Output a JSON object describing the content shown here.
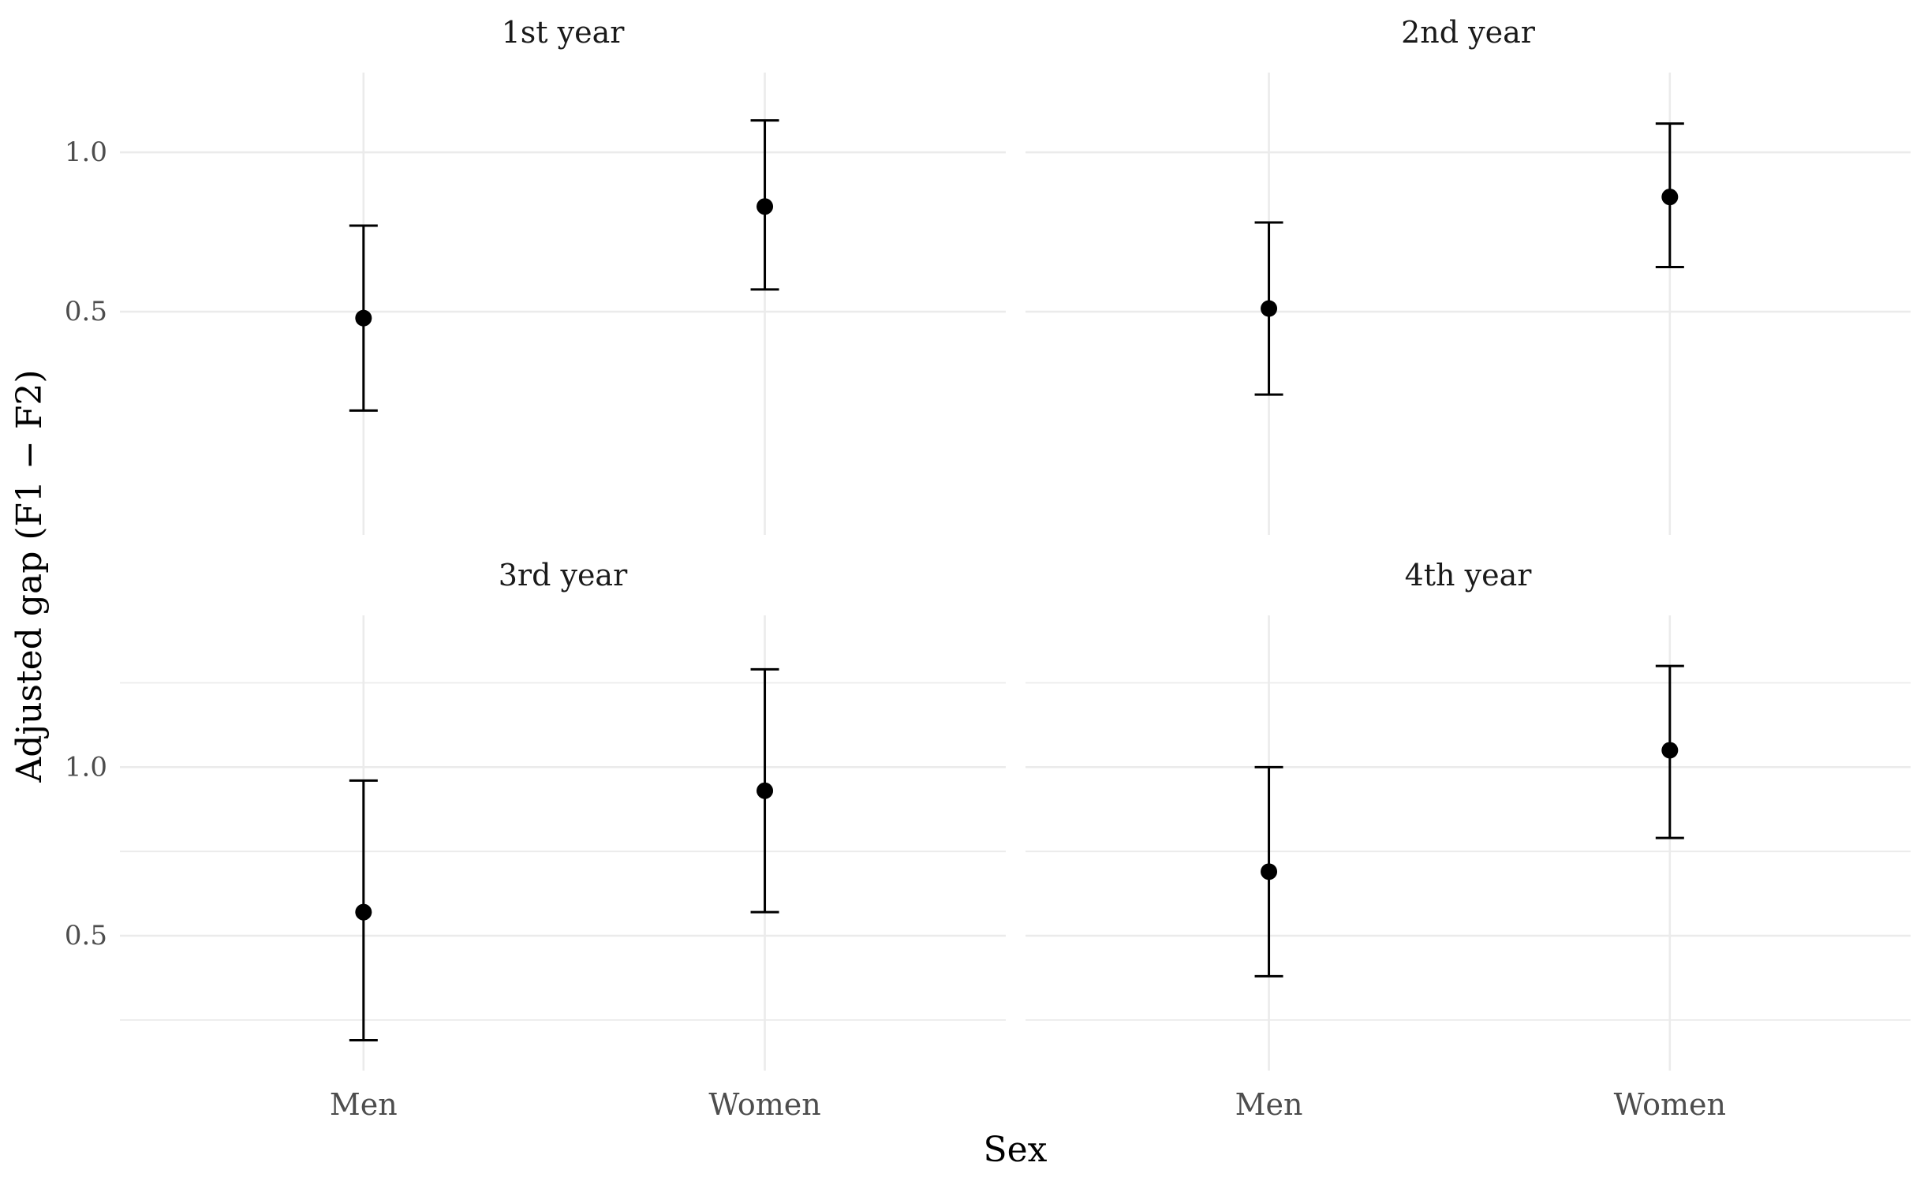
{
  "chart_data": {
    "type": "errorbar",
    "xlabel": "Sex",
    "ylabel": "Adjusted gap (F1 − F2)",
    "categories": [
      "Men",
      "Women"
    ],
    "y_ticks": [
      0.5,
      1.0
    ],
    "y_tick_labels": [
      "0.5",
      "1.0"
    ],
    "grid": true,
    "facet_layout": "2x2",
    "panels": [
      {
        "title": "1st year",
        "ylim": [
          -0.2,
          1.25
        ],
        "points": [
          {
            "category": "Men",
            "estimate": 0.48,
            "lower": 0.19,
            "upper": 0.77
          },
          {
            "category": "Women",
            "estimate": 0.83,
            "lower": 0.57,
            "upper": 1.1
          }
        ]
      },
      {
        "title": "2nd year",
        "ylim": [
          -0.2,
          1.25
        ],
        "points": [
          {
            "category": "Men",
            "estimate": 0.51,
            "lower": 0.24,
            "upper": 0.78
          },
          {
            "category": "Women",
            "estimate": 0.86,
            "lower": 0.64,
            "upper": 1.09
          }
        ]
      },
      {
        "title": "3rd year",
        "ylim": [
          0.1,
          1.45
        ],
        "points": [
          {
            "category": "Men",
            "estimate": 0.57,
            "lower": 0.19,
            "upper": 0.96
          },
          {
            "category": "Women",
            "estimate": 0.93,
            "lower": 0.57,
            "upper": 1.29
          }
        ]
      },
      {
        "title": "4th year",
        "ylim": [
          0.1,
          1.45
        ],
        "points": [
          {
            "category": "Men",
            "estimate": 0.69,
            "lower": 0.38,
            "upper": 1.0
          },
          {
            "category": "Women",
            "estimate": 1.05,
            "lower": 0.79,
            "upper": 1.3
          }
        ]
      }
    ],
    "colors": {
      "grid": "#ebebeb",
      "points": "#000000",
      "tick_text": "#4d4d4d",
      "axis_title": "#000000",
      "strip_text": "#1a1a1a"
    }
  }
}
